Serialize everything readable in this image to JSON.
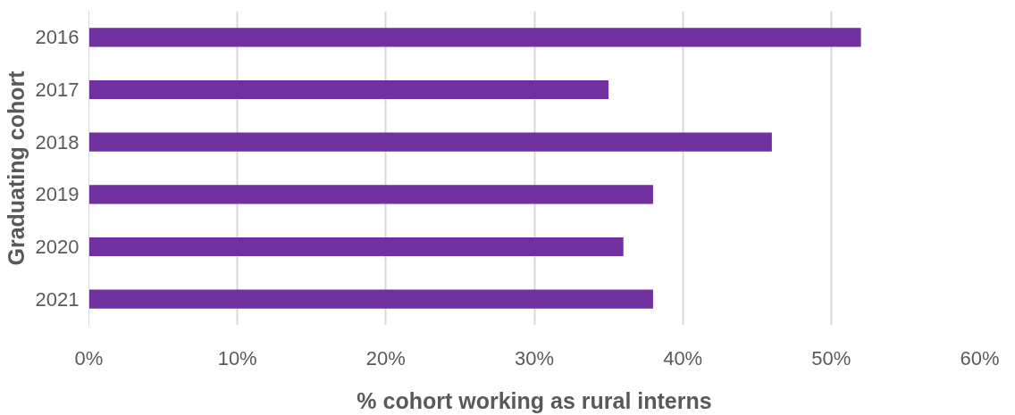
{
  "chart_data": {
    "type": "bar",
    "orientation": "horizontal",
    "xlabel": "% cohort working as rural interns",
    "ylabel": "Graduating cohort",
    "categories": [
      "2016",
      "2017",
      "2018",
      "2019",
      "2020",
      "2021"
    ],
    "values": [
      52,
      35,
      46,
      38,
      36,
      38
    ],
    "color": "#7030a0",
    "xlim": [
      0,
      60
    ],
    "xticks": [
      {
        "value": 0,
        "label": "0%"
      },
      {
        "value": 10,
        "label": "10%"
      },
      {
        "value": 20,
        "label": "20%"
      },
      {
        "value": 30,
        "label": "30%"
      },
      {
        "value": 40,
        "label": "40%"
      },
      {
        "value": 50,
        "label": "50%"
      },
      {
        "value": 60,
        "label": "60%"
      }
    ],
    "grid": "x"
  }
}
